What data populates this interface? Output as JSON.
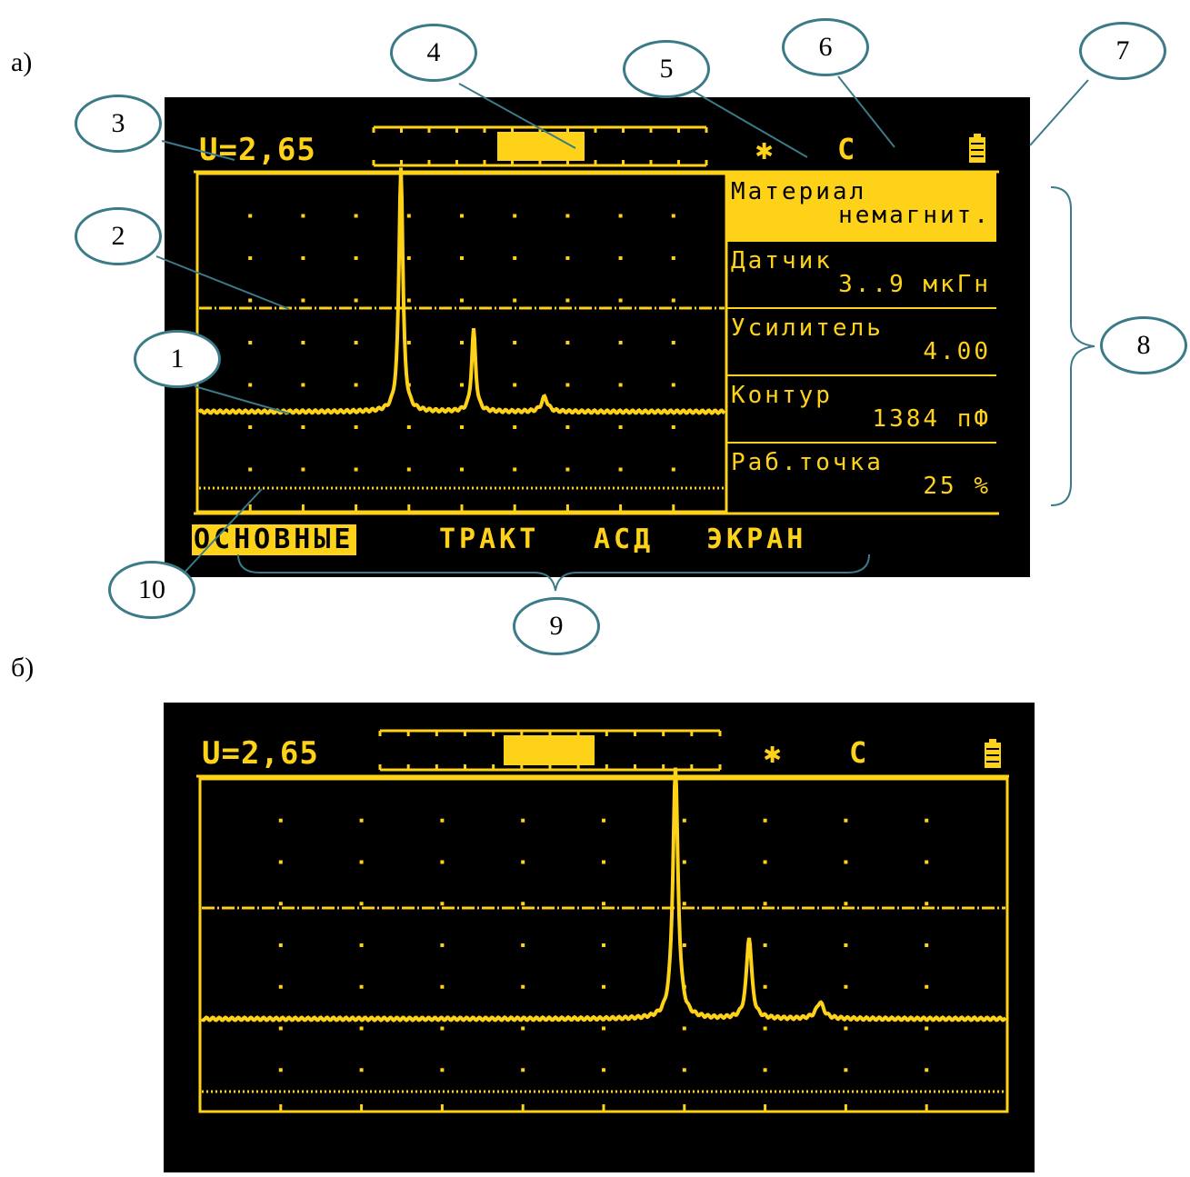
{
  "figure": {
    "label_a": "а)",
    "label_b": "б)"
  },
  "screen_header": {
    "voltage": "U=2,65",
    "sun_icon": "sun-asterisk-icon",
    "mode_letter": "C",
    "battery_icon": "battery-icon"
  },
  "menu_panel": {
    "items": [
      {
        "line1": "Материал",
        "line2": "немагнит."
      },
      {
        "line1": "Датчик",
        "line2": "3..9 мкГн"
      },
      {
        "line1": "Усилитель",
        "line2": "4.00"
      },
      {
        "line1": "Контур",
        "line2": "1384 пФ"
      },
      {
        "line1": "Раб.точка",
        "line2": "25 %"
      }
    ]
  },
  "tabs": [
    {
      "label": "ОСНОВНЫЕ",
      "active": true
    },
    {
      "label": "ТРАКТ",
      "active": false
    },
    {
      "label": "АСД",
      "active": false
    },
    {
      "label": "ЭКРАН",
      "active": false
    }
  ],
  "callouts": [
    "1",
    "2",
    "3",
    "4",
    "5",
    "6",
    "7",
    "8",
    "9",
    "10"
  ],
  "colors": {
    "screen_bg": "#000000",
    "trace": "#ffd21a",
    "callout_border": "#3b7a87"
  }
}
